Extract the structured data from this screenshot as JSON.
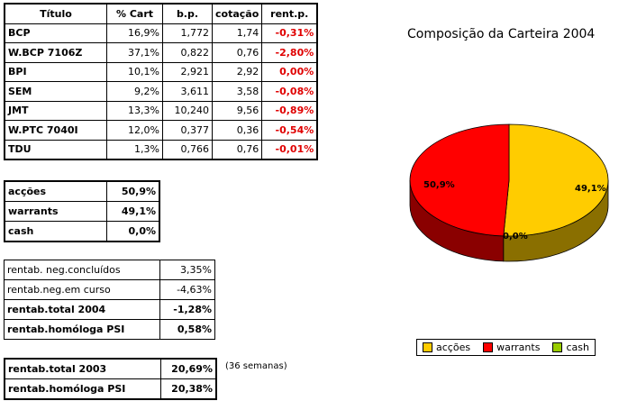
{
  "holdings": {
    "headers": [
      "Título",
      "% Cart",
      "b.p.",
      "cotação",
      "rent.p."
    ],
    "rows": [
      [
        "BCP",
        "16,9%",
        "1,772",
        "1,74",
        "-0,31%"
      ],
      [
        "W.BCP 7106Z",
        "37,1%",
        "0,822",
        "0,76",
        "-2,80%"
      ],
      [
        "BPI",
        "10,1%",
        "2,921",
        "2,92",
        "0,00%"
      ],
      [
        "SEM",
        "9,2%",
        "3,611",
        "3,58",
        "-0,08%"
      ],
      [
        "JMT",
        "13,3%",
        "10,240",
        "9,56",
        "-0,89%"
      ],
      [
        "W.PTC 7040I",
        "12,0%",
        "0,377",
        "0,36",
        "-0,54%"
      ],
      [
        "TDU",
        "1,3%",
        "0,766",
        "0,76",
        "-0,01%"
      ]
    ]
  },
  "allocation": {
    "rows": [
      [
        "acções",
        "50,9%"
      ],
      [
        "warrants",
        "49,1%"
      ],
      [
        "cash",
        "0,0%"
      ]
    ]
  },
  "returns": {
    "rows": [
      [
        "rentab. neg.concluídos",
        "3,35%"
      ],
      [
        "rentab.neg.em curso",
        "-4,63%"
      ],
      [
        "rentab.total 2004",
        "-1,28%"
      ],
      [
        "rentab.homóloga PSI",
        "0,58%"
      ]
    ]
  },
  "returns_2003": {
    "rows": [
      [
        "rentab.total 2003",
        "20,69%"
      ],
      [
        "rentab.homóloga PSI",
        "20,38%"
      ]
    ],
    "note": "(36 semanas)"
  },
  "chart_data": {
    "type": "pie",
    "title": "Composição da Carteira 2004",
    "categories": [
      "acções",
      "warrants",
      "cash"
    ],
    "values": [
      50.9,
      49.1,
      0.0
    ],
    "data_labels": [
      "50,9%",
      "49,1%",
      "0,0%"
    ],
    "colors": [
      "#ffcc00",
      "#ff0000",
      "#99cc00"
    ],
    "side_colors": [
      "#8a6f00",
      "#8a0000",
      "#4f6a00"
    ],
    "legend_position": "bottom"
  }
}
